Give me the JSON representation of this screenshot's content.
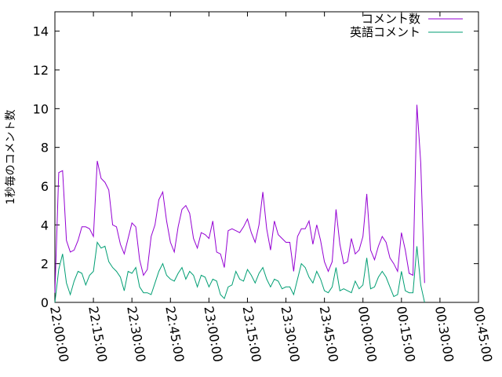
{
  "chart_data": {
    "type": "line",
    "ylabel": "1秒毎のコメント数",
    "ylim": [
      0,
      15
    ],
    "y_ticks": [
      "0",
      "2",
      "4",
      "6",
      "8",
      "10",
      "12",
      "14"
    ],
    "x_ticks": [
      "22:00:00",
      "22:15:00",
      "22:30:00",
      "22:45:00",
      "23:00:00",
      "23:15:00",
      "23:30:00",
      "23:45:00",
      "00:00:00",
      "00:15:00",
      "00:30:00",
      "00:45:00"
    ],
    "xlim": [
      "22:00:00",
      "00:45:00"
    ],
    "grid": false,
    "legend_position": "top-right",
    "x_start": "22:00:00",
    "x_step_seconds": 90,
    "series": [
      {
        "name": "コメント数",
        "color": "#9400d3",
        "values": [
          0.5,
          6.7,
          6.8,
          3.2,
          2.6,
          2.7,
          3.2,
          3.9,
          3.9,
          3.8,
          3.4,
          7.3,
          6.4,
          6.2,
          5.8,
          4.0,
          3.9,
          3.0,
          2.5,
          3.3,
          4.1,
          3.9,
          2.2,
          1.4,
          1.7,
          3.4,
          4.0,
          5.3,
          5.7,
          4.2,
          3.1,
          2.6,
          3.9,
          4.8,
          5.0,
          4.6,
          3.3,
          2.8,
          3.6,
          3.5,
          3.3,
          4.2,
          2.6,
          2.5,
          1.8,
          3.7,
          3.8,
          3.7,
          3.6,
          3.9,
          4.3,
          3.6,
          3.1,
          4.0,
          5.7,
          3.8,
          2.7,
          4.2,
          3.5,
          3.3,
          3.1,
          3.1,
          1.6,
          3.4,
          3.8,
          3.8,
          4.2,
          3.0,
          4.0,
          3.2,
          2.1,
          1.6,
          2.1,
          4.8,
          3.0,
          2.0,
          2.1,
          3.3,
          2.5,
          2.7,
          3.4,
          5.6,
          2.7,
          2.2,
          2.9,
          3.4,
          3.1,
          2.3,
          2.0,
          1.6,
          3.6,
          2.7,
          1.5,
          1.4,
          10.2,
          7.2,
          1.0
        ]
      },
      {
        "name": "英語コメント",
        "color": "#009e73",
        "values": [
          0.0,
          1.7,
          2.5,
          1.0,
          0.4,
          1.1,
          1.6,
          1.5,
          0.9,
          1.4,
          1.6,
          3.1,
          2.8,
          2.9,
          2.1,
          1.8,
          1.6,
          1.3,
          0.6,
          1.6,
          1.5,
          1.8,
          0.8,
          0.5,
          0.5,
          0.4,
          1.0,
          1.6,
          2.0,
          1.4,
          1.2,
          1.1,
          1.5,
          1.8,
          1.2,
          1.6,
          1.4,
          0.8,
          1.4,
          1.3,
          0.8,
          1.2,
          1.1,
          0.4,
          0.2,
          0.8,
          0.9,
          1.6,
          1.2,
          1.1,
          1.7,
          1.4,
          1.0,
          1.5,
          1.8,
          1.2,
          0.8,
          1.2,
          1.1,
          0.7,
          0.8,
          0.8,
          0.4,
          1.2,
          2.0,
          1.8,
          1.3,
          1.0,
          1.6,
          1.2,
          0.6,
          0.5,
          0.8,
          1.8,
          0.6,
          0.7,
          0.6,
          0.5,
          1.1,
          0.7,
          0.9,
          2.3,
          0.7,
          0.8,
          1.3,
          1.6,
          1.3,
          0.8,
          0.3,
          0.4,
          1.6,
          0.6,
          0.5,
          0.5,
          2.9,
          0.9,
          0.0
        ]
      }
    ]
  }
}
